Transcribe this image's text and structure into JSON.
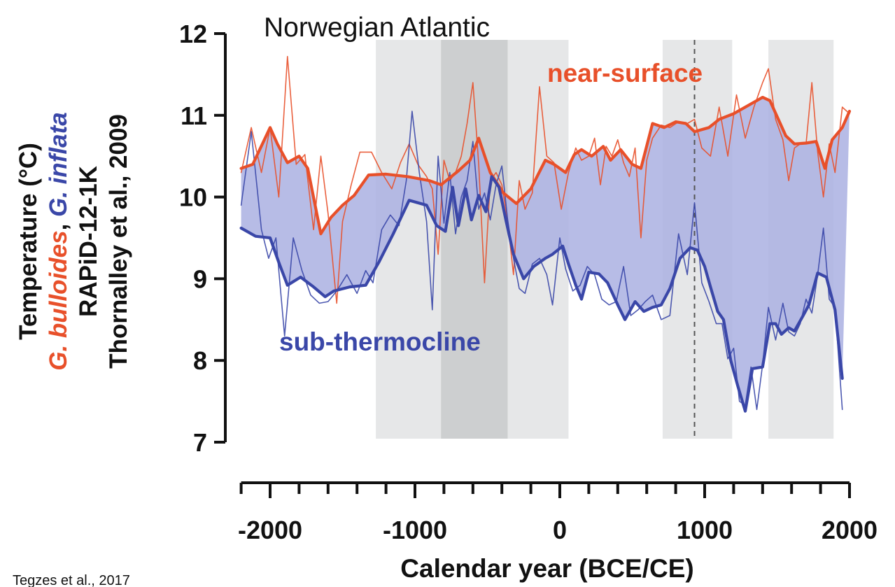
{
  "chart_data": {
    "type": "line",
    "title": "Norwegian Atlantic",
    "xlabel": "Calendar year (BCE/CE)",
    "ylabel": {
      "line1": "Temperature (°C)",
      "line2_part1": "G. bulloides",
      "line2_sep": ", ",
      "line2_part2": "G. inflata",
      "line3": "RAPiD-12-1K",
      "line4": "Thornalley et al., 2009"
    },
    "xlim": [
      -2200,
      2000
    ],
    "ylim": [
      7,
      12
    ],
    "xticks": [
      -2000,
      -1000,
      0,
      1000,
      2000
    ],
    "xtick_labels": [
      "-2000",
      "-1000",
      "0",
      "1000",
      "2000"
    ],
    "yticks": [
      7,
      8,
      9,
      10,
      11,
      12
    ],
    "ytick_labels": [
      "7",
      "8",
      "9",
      "10",
      "11",
      "12"
    ],
    "annotations": {
      "near_surface": "near-surface",
      "sub_thermocline": "sub-thermocline"
    },
    "shaded_periods": [
      {
        "start": -1270,
        "end": 60,
        "shade": "light"
      },
      {
        "start": -820,
        "end": -360,
        "shade": "dark"
      },
      {
        "start": 710,
        "end": 1190,
        "shade": "light"
      },
      {
        "start": 1440,
        "end": 1890,
        "shade": "light"
      }
    ],
    "vline": 930,
    "colors": {
      "near_surface": "#e8502a",
      "sub_thermocline": "#3a47a8",
      "fill": "#aab0e2",
      "shade_light": "#e6e7e8",
      "shade_dark": "#cdcfd0"
    },
    "series": [
      {
        "name": "near-surface",
        "role": "smoothed",
        "x": [
          -2200,
          -2120,
          -2000,
          -1950,
          -1880,
          -1800,
          -1740,
          -1650,
          -1580,
          -1500,
          -1420,
          -1320,
          -1200,
          -1050,
          -900,
          -820,
          -700,
          -620,
          -560,
          -480,
          -390,
          -300,
          -200,
          -100,
          -40,
          40,
          100,
          150,
          220,
          300,
          350,
          420,
          500,
          560,
          640,
          720,
          800,
          870,
          930,
          1030,
          1100,
          1200,
          1300,
          1400,
          1450,
          1560,
          1620,
          1700,
          1770,
          1830,
          1880,
          1950,
          2000
        ],
        "y": [
          10.35,
          10.4,
          10.85,
          10.65,
          10.42,
          10.5,
          10.35,
          9.55,
          9.75,
          9.9,
          10.02,
          10.27,
          10.28,
          10.25,
          10.2,
          10.15,
          10.32,
          10.45,
          10.72,
          10.3,
          10.05,
          9.92,
          10.1,
          10.45,
          10.4,
          10.3,
          10.52,
          10.58,
          10.5,
          10.62,
          10.45,
          10.58,
          10.4,
          10.35,
          10.9,
          10.85,
          10.92,
          10.9,
          10.8,
          10.85,
          10.95,
          11.02,
          11.12,
          11.22,
          11.18,
          10.75,
          10.65,
          10.66,
          10.68,
          10.35,
          10.7,
          10.85,
          11.05
        ]
      },
      {
        "name": "near-surface",
        "role": "raw",
        "x": [
          -2200,
          -2130,
          -2060,
          -2000,
          -1940,
          -1880,
          -1820,
          -1760,
          -1700,
          -1650,
          -1600,
          -1540,
          -1500,
          -1440,
          -1380,
          -1300,
          -1230,
          -1160,
          -1100,
          -1040,
          -980,
          -920,
          -880,
          -840,
          -800,
          -760,
          -720,
          -680,
          -640,
          -600,
          -560,
          -520,
          -480,
          -440,
          -400,
          -360,
          -320,
          -280,
          -240,
          -190,
          -140,
          -90,
          -40,
          10,
          60,
          110,
          150,
          200,
          240,
          280,
          320,
          360,
          400,
          440,
          480,
          520,
          560,
          600,
          640,
          700,
          760,
          820,
          880,
          930,
          980,
          1040,
          1100,
          1160,
          1220,
          1280,
          1340,
          1400,
          1440,
          1490,
          1540,
          1580,
          1620,
          1660,
          1700,
          1740,
          1780,
          1820,
          1860,
          1900,
          1950,
          2000
        ],
        "y": [
          10.3,
          10.85,
          10.3,
          10.85,
          10.0,
          11.72,
          10.4,
          10.52,
          9.6,
          10.5,
          9.8,
          8.7,
          9.7,
          10.15,
          10.55,
          10.55,
          10.3,
          10.1,
          10.42,
          10.65,
          10.4,
          10.25,
          10.1,
          9.3,
          10.45,
          10.2,
          10.3,
          10.5,
          10.9,
          11.4,
          10.4,
          8.95,
          10.2,
          10.3,
          10.15,
          9.7,
          9.05,
          10.2,
          9.85,
          10.05,
          11.35,
          10.5,
          10.42,
          9.85,
          10.3,
          10.6,
          10.45,
          10.5,
          10.72,
          10.15,
          10.62,
          10.5,
          10.7,
          10.42,
          10.25,
          10.6,
          9.5,
          10.45,
          10.72,
          10.88,
          10.85,
          10.92,
          10.9,
          10.95,
          10.6,
          10.5,
          11.1,
          10.5,
          11.25,
          10.72,
          11.1,
          11.4,
          11.57,
          10.95,
          10.7,
          10.2,
          10.6,
          10.65,
          10.65,
          11.4,
          10.55,
          10.0,
          10.65,
          10.3,
          11.1,
          11.02
        ]
      },
      {
        "name": "sub-thermocline",
        "role": "smoothed",
        "x": [
          -2200,
          -2100,
          -2000,
          -1940,
          -1880,
          -1790,
          -1700,
          -1620,
          -1560,
          -1450,
          -1340,
          -1250,
          -1150,
          -1040,
          -920,
          -850,
          -790,
          -740,
          -700,
          -650,
          -610,
          -560,
          -510,
          -470,
          -420,
          -370,
          -320,
          -250,
          -180,
          -100,
          -50,
          20,
          60,
          110,
          150,
          200,
          270,
          330,
          400,
          450,
          520,
          580,
          640,
          700,
          760,
          830,
          900,
          950,
          1000,
          1040,
          1090,
          1130,
          1180,
          1230,
          1280,
          1330,
          1400,
          1450,
          1490,
          1530,
          1580,
          1620,
          1680,
          1720,
          1780,
          1840,
          1900,
          1950
        ],
        "y": [
          9.62,
          9.52,
          9.5,
          9.2,
          8.92,
          9.02,
          8.9,
          8.78,
          8.85,
          8.9,
          8.92,
          9.2,
          9.55,
          9.96,
          9.9,
          9.65,
          9.58,
          10.12,
          9.65,
          10.1,
          9.72,
          10.02,
          9.82,
          10.25,
          10.12,
          9.7,
          9.3,
          9.0,
          9.15,
          9.25,
          9.3,
          9.4,
          9.18,
          8.92,
          8.75,
          9.08,
          9.06,
          8.95,
          8.68,
          8.5,
          8.72,
          8.6,
          8.65,
          8.68,
          8.88,
          9.25,
          9.38,
          9.35,
          9.15,
          8.9,
          8.6,
          8.5,
          8.0,
          7.68,
          7.38,
          7.9,
          7.92,
          8.45,
          8.45,
          8.32,
          8.4,
          8.36,
          8.55,
          8.68,
          9.07,
          9.02,
          8.62,
          7.78
        ]
      },
      {
        "name": "sub-thermocline",
        "role": "raw",
        "x": [
          -2200,
          -2130,
          -2060,
          -2010,
          -1960,
          -1900,
          -1840,
          -1780,
          -1720,
          -1660,
          -1600,
          -1540,
          -1470,
          -1400,
          -1340,
          -1290,
          -1230,
          -1170,
          -1110,
          -1060,
          -1020,
          -970,
          -920,
          -880,
          -840,
          -800,
          -760,
          -720,
          -680,
          -640,
          -600,
          -560,
          -520,
          -480,
          -440,
          -400,
          -360,
          -320,
          -280,
          -240,
          -190,
          -140,
          -90,
          -50,
          0,
          40,
          90,
          140,
          190,
          240,
          290,
          340,
          390,
          440,
          490,
          540,
          590,
          640,
          700,
          760,
          820,
          880,
          930,
          980,
          1030,
          1080,
          1120,
          1160,
          1200,
          1240,
          1280,
          1320,
          1360,
          1400,
          1440,
          1490,
          1540,
          1580,
          1620,
          1660,
          1700,
          1740,
          1780,
          1820,
          1860,
          1900,
          1950
        ],
        "y": [
          9.9,
          10.8,
          9.6,
          9.25,
          9.5,
          8.3,
          9.5,
          9.1,
          8.8,
          8.7,
          8.72,
          8.85,
          9.05,
          8.82,
          9.1,
          8.95,
          9.6,
          9.78,
          9.65,
          10.2,
          11.05,
          10.3,
          9.7,
          8.62,
          10.5,
          9.68,
          10.3,
          9.55,
          10.0,
          10.2,
          10.68,
          9.85,
          10.05,
          9.72,
          10.15,
          10.38,
          9.72,
          9.25,
          8.88,
          8.82,
          9.18,
          9.25,
          9.05,
          8.68,
          9.5,
          9.12,
          8.85,
          8.92,
          9.15,
          9.05,
          8.75,
          8.68,
          8.72,
          9.15,
          8.55,
          8.62,
          8.72,
          8.8,
          8.5,
          8.55,
          9.55,
          9.05,
          9.93,
          8.95,
          8.72,
          8.45,
          8.45,
          8.02,
          8.15,
          7.5,
          7.45,
          7.92,
          7.4,
          7.95,
          8.65,
          8.25,
          8.7,
          8.35,
          8.3,
          8.45,
          8.75,
          8.58,
          9.05,
          9.62,
          8.75,
          8.65,
          7.4
        ]
      }
    ]
  },
  "credit": "Tegzes et al., 2017"
}
